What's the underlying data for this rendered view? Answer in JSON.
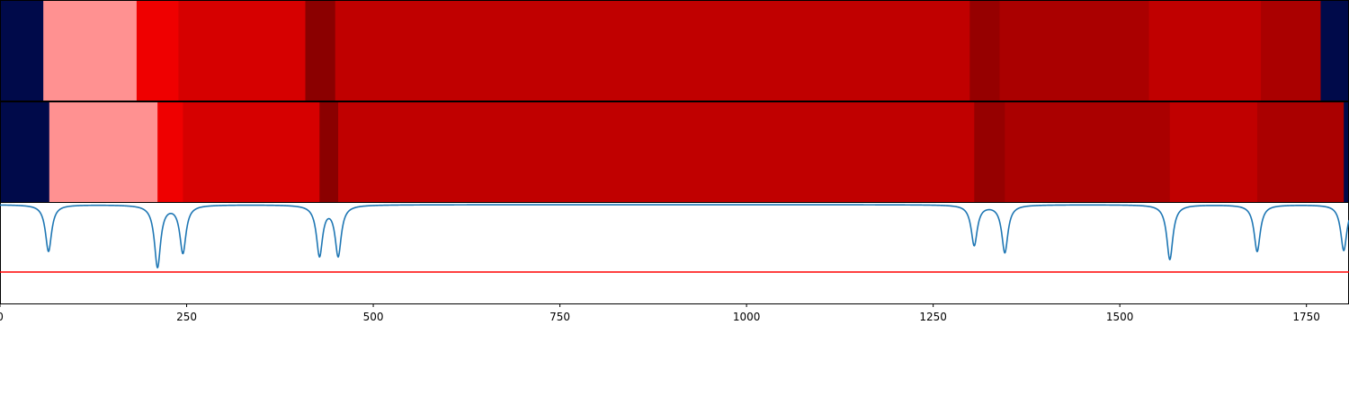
{
  "chart_data": [
    {
      "type": "heatmap",
      "segments": [
        {
          "start": 0,
          "end": 58,
          "color": "#000a4a"
        },
        {
          "start": 58,
          "end": 183,
          "color": "#ff9191"
        },
        {
          "start": 183,
          "end": 239,
          "color": "#ef0000"
        },
        {
          "start": 239,
          "end": 409,
          "color": "#d60000"
        },
        {
          "start": 409,
          "end": 449,
          "color": "#8b0000"
        },
        {
          "start": 449,
          "end": 1299,
          "color": "#c00000"
        },
        {
          "start": 1299,
          "end": 1339,
          "color": "#960000"
        },
        {
          "start": 1339,
          "end": 1539,
          "color": "#aa0000"
        },
        {
          "start": 1539,
          "end": 1689,
          "color": "#c00000"
        },
        {
          "start": 1689,
          "end": 1769,
          "color": "#aa0000"
        },
        {
          "start": 1769,
          "end": 1807,
          "color": "#000a4a"
        }
      ]
    },
    {
      "type": "heatmap",
      "segments": [
        {
          "start": 0,
          "end": 66,
          "color": "#000a4a"
        },
        {
          "start": 66,
          "end": 211,
          "color": "#ff9191"
        },
        {
          "start": 211,
          "end": 245,
          "color": "#ef0000"
        },
        {
          "start": 245,
          "end": 428,
          "color": "#d60000"
        },
        {
          "start": 428,
          "end": 453,
          "color": "#8b0000"
        },
        {
          "start": 453,
          "end": 1305,
          "color": "#c00000"
        },
        {
          "start": 1305,
          "end": 1346,
          "color": "#960000"
        },
        {
          "start": 1346,
          "end": 1567,
          "color": "#aa0000"
        },
        {
          "start": 1567,
          "end": 1684,
          "color": "#c00000"
        },
        {
          "start": 1684,
          "end": 1800,
          "color": "#aa0000"
        },
        {
          "start": 1800,
          "end": 1807,
          "color": "#000a4a"
        }
      ]
    },
    {
      "type": "line",
      "xlim": [
        0,
        1807
      ],
      "ylim": [
        -1.1,
        0.02
      ],
      "baseline": 0,
      "threshold": -0.75,
      "line_color": "#1f77b4",
      "threshold_color": "#ff0000",
      "dips": [
        {
          "x": 65,
          "depth": -0.52
        },
        {
          "x": 211,
          "depth": -0.69
        },
        {
          "x": 245,
          "depth": -0.53
        },
        {
          "x": 428,
          "depth": -0.56
        },
        {
          "x": 453,
          "depth": -0.56
        },
        {
          "x": 1305,
          "depth": -0.45
        },
        {
          "x": 1346,
          "depth": -0.53
        },
        {
          "x": 1567,
          "depth": -0.61
        },
        {
          "x": 1684,
          "depth": -0.52
        },
        {
          "x": 1800,
          "depth": -0.51
        }
      ],
      "xticks": [
        0,
        250,
        500,
        750,
        1000,
        1250,
        1500,
        1750
      ],
      "xtick_labels": [
        "0",
        "250",
        "500",
        "750",
        "1000",
        "1250",
        "1500",
        "1750"
      ]
    }
  ]
}
